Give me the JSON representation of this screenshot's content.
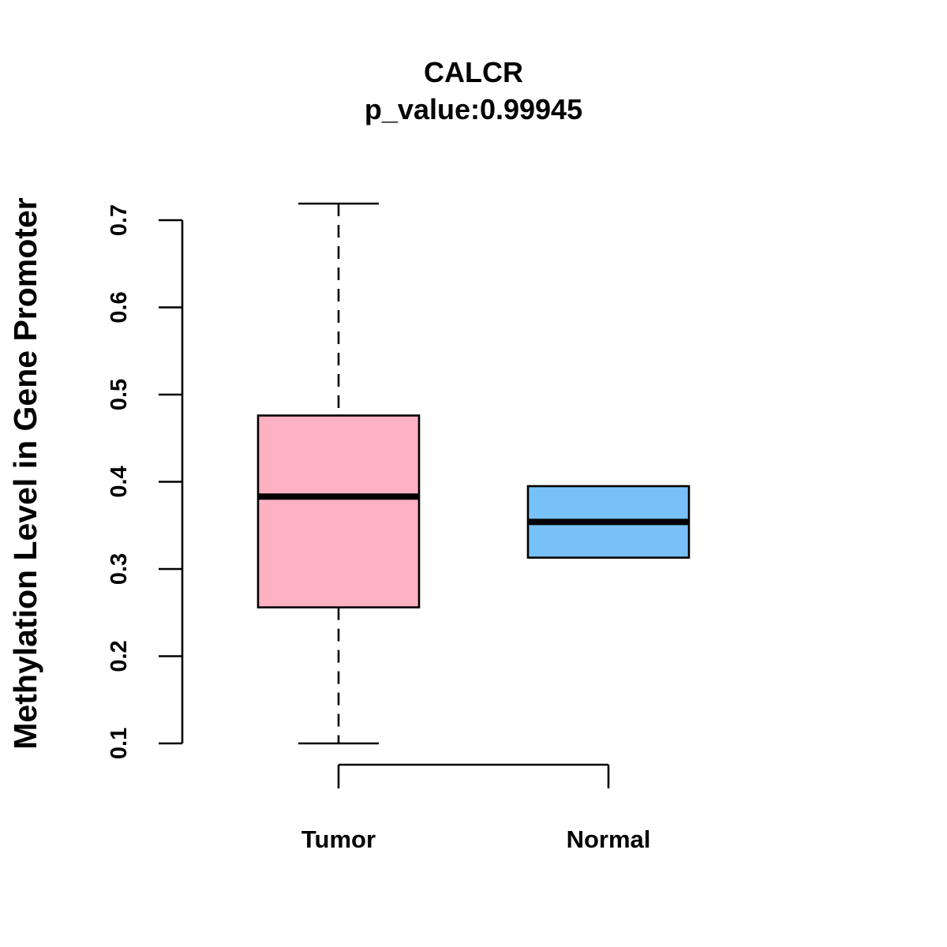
{
  "chart_data": {
    "type": "boxplot",
    "title": "CALCR",
    "subtitle": "p_value:0.99945",
    "xlabel": "",
    "ylabel": "Methylation Level in Gene Promoter",
    "ylim": [
      0.1,
      0.7
    ],
    "yticks": [
      0.1,
      0.2,
      0.3,
      0.4,
      0.5,
      0.6,
      0.7
    ],
    "ytick_labels": [
      "0.1",
      "0.2",
      "0.3",
      "0.4",
      "0.5",
      "0.6",
      "0.7"
    ],
    "grid": false,
    "categories": [
      "Tumor",
      "Normal"
    ],
    "boxes": [
      {
        "name": "Tumor",
        "color": "#FDB1C2",
        "whisker_low": 0.1,
        "q1": 0.256,
        "median": 0.383,
        "q3": 0.476,
        "whisker_high": 0.719
      },
      {
        "name": "Normal",
        "color": "#78C0F8",
        "whisker_low": 0.313,
        "q1": 0.313,
        "median": 0.354,
        "q3": 0.395,
        "whisker_high": 0.395
      }
    ]
  }
}
